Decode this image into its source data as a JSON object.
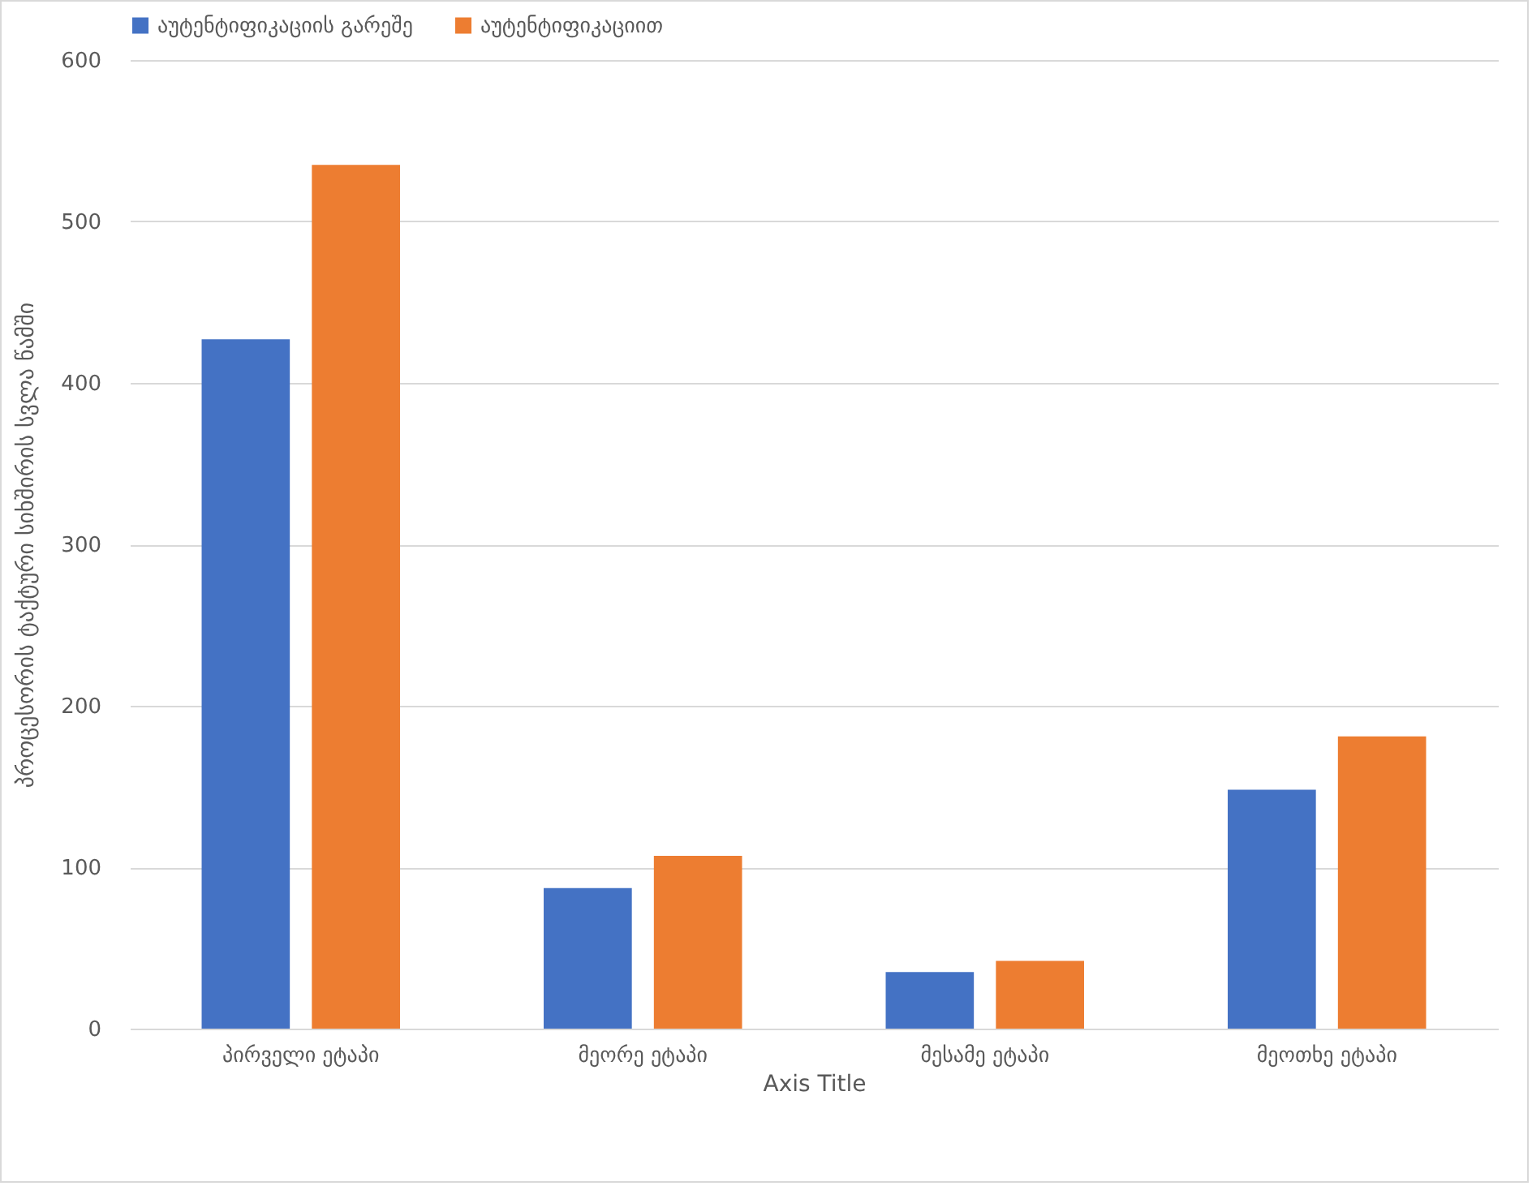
{
  "chart_data": {
    "type": "bar",
    "xlabel": "Axis Title",
    "ylabel": "პროცესორის ტაქტური სიხშირის სვლა წამში",
    "categories": [
      "პირველი ეტაპი",
      "მეორე ეტაპი",
      "მესამე ეტაპი",
      "მეოთხე ეტაპი"
    ],
    "series": [
      {
        "name": "აუტენტიფიკაციის გარეშე",
        "color": "#4472c4",
        "values": [
          427,
          87,
          35,
          148
        ]
      },
      {
        "name": "აუტენტიფიკაციით",
        "color": "#ed7d31",
        "values": [
          535,
          107,
          42,
          181
        ]
      }
    ],
    "ylim": [
      0,
      600
    ],
    "yticks": [
      0,
      100,
      200,
      300,
      400,
      500,
      600
    ],
    "grid": "y",
    "legend": "top"
  }
}
